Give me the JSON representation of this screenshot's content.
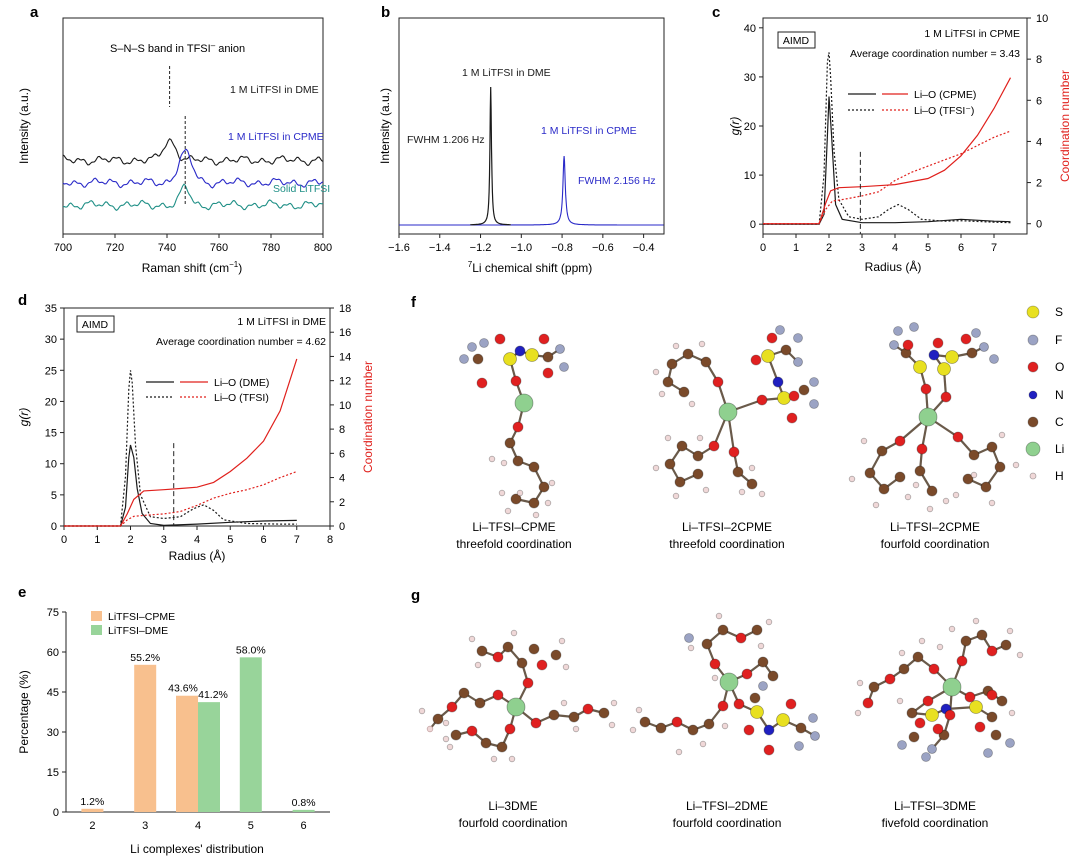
{
  "panel_letters": {
    "a": "a",
    "b": "b",
    "c": "c",
    "d": "d",
    "e": "e",
    "f": "f",
    "g": "g"
  },
  "colors": {
    "black": "#1a1a1a",
    "blue": "#2a2ac8",
    "teal": "#1f8f86",
    "red": "#e0201c",
    "orange": "#f8c08e",
    "green": "#98d49a",
    "S": "#e8e020",
    "F": "#9ba3c4",
    "O": "#e02020",
    "N": "#2020c0",
    "C": "#7a4a2a",
    "Li": "#8fd08f",
    "H": "#f0d8d8"
  },
  "chart_data": [
    {
      "id": "a",
      "type": "line",
      "title": "",
      "xlabel_pre": "Raman shift (cm",
      "xlabel_sup": "−1",
      "xlabel_post": ")",
      "ylabel": "Intensity (a.u.)",
      "xlim": [
        700,
        800
      ],
      "xticks": [
        700,
        720,
        740,
        760,
        780,
        800
      ],
      "annotation": "S–N–S band in TFSI",
      "annotation_sup": "–",
      "annotation_post": " anion",
      "series": [
        {
          "name": "1 M LiTFSI in DME",
          "color": "#1a1a1a",
          "peak": 741,
          "height": 1.4,
          "width": 3.5,
          "offset": 3.2,
          "label": "1 M LiTFSI in DME"
        },
        {
          "name": "1 M LiTFSI in CPME",
          "color": "#2a2ac8",
          "peak": 747,
          "height": 2.1,
          "width": 3.8,
          "offset": 1.6,
          "label": "1 M LiTFSI in CPME"
        },
        {
          "name": "Solid LiTFSI",
          "color": "#1f8f86",
          "peak": 747,
          "height": 1.3,
          "width": 2.5,
          "offset": 0,
          "label": "Solid LiTFSI"
        }
      ]
    },
    {
      "id": "b",
      "type": "line",
      "xlabel_pre": "",
      "xlabel_sup": "7",
      "xlabel_post": "Li chemical shift (ppm)",
      "ylabel": "Intensity (a.u.)",
      "xlim": [
        -1.6,
        -0.3
      ],
      "xticks": [
        -1.6,
        -1.4,
        -1.2,
        -1.0,
        -0.8,
        -0.6,
        -0.4
      ],
      "xtick_labels": [
        "−1.6",
        "−1.4",
        "−1.2",
        "−1.0",
        "−0.8",
        "−0.6",
        "−0.4"
      ],
      "series": [
        {
          "name": "1 M LiTFSI in DME",
          "color": "#1a1a1a",
          "peak": -1.15,
          "height": 1.0,
          "fwhm": "FWHM 1.206 Hz"
        },
        {
          "name": "1 M LiTFSI in CPME",
          "color": "#2a2ac8",
          "peak": -0.79,
          "height": 0.5,
          "fwhm": "FWHM 2.156 Hz"
        }
      ]
    },
    {
      "id": "c",
      "type": "line",
      "box_label": "AIMD",
      "title": "1 M LiTFSI in CPME",
      "subtitle": "Average coordination number = 3.43",
      "xlabel": "Radius (Å)",
      "ylabel": "g(r)",
      "y2label": "Coordination number",
      "xlim": [
        0,
        8
      ],
      "ylim": [
        -2,
        42
      ],
      "y2lim": [
        -0.5,
        10
      ],
      "xticks": [
        0,
        1,
        2,
        3,
        4,
        5,
        6,
        7
      ],
      "yticks": [
        0,
        10,
        20,
        30,
        40
      ],
      "y2ticks": [
        0,
        2,
        4,
        6,
        8,
        10
      ],
      "vline": 2.95,
      "legend": [
        "Li–O (CPME)",
        "Li–O (TFSI⁻)"
      ],
      "gr_solid": [
        [
          0,
          0
        ],
        [
          1.7,
          0
        ],
        [
          1.85,
          2
        ],
        [
          1.95,
          18
        ],
        [
          2.0,
          26
        ],
        [
          2.08,
          18
        ],
        [
          2.2,
          4
        ],
        [
          2.4,
          1
        ],
        [
          3,
          0.3
        ],
        [
          4,
          0.3
        ],
        [
          5,
          0.5
        ],
        [
          6,
          1.0
        ],
        [
          7,
          0.6
        ],
        [
          7.5,
          0.5
        ]
      ],
      "gr_dotted": [
        [
          0,
          0
        ],
        [
          1.7,
          0
        ],
        [
          1.85,
          10
        ],
        [
          1.95,
          33
        ],
        [
          2.0,
          35
        ],
        [
          2.05,
          30
        ],
        [
          2.15,
          15
        ],
        [
          2.3,
          5
        ],
        [
          2.6,
          1.5
        ],
        [
          3,
          1
        ],
        [
          3.5,
          1.5
        ],
        [
          3.8,
          3
        ],
        [
          4.1,
          4
        ],
        [
          4.4,
          3
        ],
        [
          4.8,
          1
        ],
        [
          5.5,
          0.6
        ],
        [
          6,
          0.7
        ],
        [
          7,
          0.4
        ],
        [
          7.5,
          0.3
        ]
      ],
      "cn_solid": [
        [
          0,
          0
        ],
        [
          1.7,
          0
        ],
        [
          1.9,
          1.0
        ],
        [
          2.05,
          1.6
        ],
        [
          2.3,
          1.75
        ],
        [
          3,
          1.8
        ],
        [
          4,
          1.9
        ],
        [
          5,
          2.2
        ],
        [
          5.5,
          2.6
        ],
        [
          6,
          3.3
        ],
        [
          6.5,
          4.3
        ],
        [
          7,
          5.6
        ],
        [
          7.5,
          7.1
        ]
      ],
      "cn_dotted": [
        [
          0,
          0
        ],
        [
          1.7,
          0
        ],
        [
          1.9,
          0.7
        ],
        [
          2.1,
          1.1
        ],
        [
          2.5,
          1.2
        ],
        [
          3,
          1.35
        ],
        [
          3.5,
          1.55
        ],
        [
          4,
          2.1
        ],
        [
          4.5,
          2.5
        ],
        [
          5,
          2.8
        ],
        [
          5.5,
          3.1
        ],
        [
          6,
          3.4
        ],
        [
          6.5,
          3.8
        ],
        [
          7,
          4.2
        ],
        [
          7.5,
          4.5
        ]
      ]
    },
    {
      "id": "d",
      "type": "line",
      "box_label": "AIMD",
      "title": "1 M LiTFSI in DME",
      "subtitle": "Average coordination number = 4.62",
      "xlabel": "Radius (Å)",
      "ylabel": "g(r)",
      "y2label": "Coordination number",
      "xlim": [
        0,
        8
      ],
      "ylim": [
        0,
        35
      ],
      "y2lim": [
        0,
        18
      ],
      "xticks": [
        0,
        1,
        2,
        3,
        4,
        5,
        6,
        7,
        8
      ],
      "yticks": [
        0,
        5,
        10,
        15,
        20,
        25,
        30,
        35
      ],
      "y2ticks": [
        0,
        2,
        4,
        6,
        8,
        10,
        12,
        14,
        16,
        18
      ],
      "vline": 3.3,
      "legend": [
        "Li–O (DME)",
        "Li–O (TFSI)"
      ],
      "gr_solid": [
        [
          0,
          0
        ],
        [
          1.7,
          0
        ],
        [
          1.85,
          3
        ],
        [
          1.95,
          11
        ],
        [
          2.0,
          13
        ],
        [
          2.1,
          11
        ],
        [
          2.2,
          6
        ],
        [
          2.35,
          2
        ],
        [
          2.6,
          0.4
        ],
        [
          3,
          0.1
        ],
        [
          4,
          0.3
        ],
        [
          5,
          0.6
        ],
        [
          6,
          0.8
        ],
        [
          7,
          0.9
        ]
      ],
      "gr_dotted": [
        [
          0,
          0
        ],
        [
          1.7,
          0
        ],
        [
          1.85,
          8
        ],
        [
          1.95,
          22
        ],
        [
          2.0,
          25
        ],
        [
          2.05,
          23
        ],
        [
          2.15,
          13
        ],
        [
          2.3,
          5
        ],
        [
          2.6,
          1.5
        ],
        [
          3,
          1.2
        ],
        [
          3.5,
          1.5
        ],
        [
          3.9,
          2.8
        ],
        [
          4.2,
          3.4
        ],
        [
          4.5,
          2.5
        ],
        [
          4.8,
          1
        ],
        [
          5.5,
          0.4
        ],
        [
          6.5,
          0.3
        ],
        [
          7,
          0.3
        ]
      ],
      "cn_solid": [
        [
          0,
          0
        ],
        [
          1.7,
          0
        ],
        [
          1.9,
          1
        ],
        [
          2.1,
          2.2
        ],
        [
          2.4,
          2.9
        ],
        [
          3,
          3.0
        ],
        [
          3.5,
          3.1
        ],
        [
          4,
          3.2
        ],
        [
          4.5,
          3.6
        ],
        [
          5,
          4.5
        ],
        [
          5.5,
          5.6
        ],
        [
          6,
          7.0
        ],
        [
          6.5,
          9.5
        ],
        [
          7,
          13.8
        ]
      ],
      "cn_dotted": [
        [
          0,
          0
        ],
        [
          1.7,
          0
        ],
        [
          1.9,
          0.5
        ],
        [
          2.1,
          0.8
        ],
        [
          2.5,
          0.9
        ],
        [
          3,
          1.0
        ],
        [
          3.5,
          1.2
        ],
        [
          4,
          1.7
        ],
        [
          4.5,
          2.3
        ],
        [
          5,
          2.7
        ],
        [
          5.5,
          3.0
        ],
        [
          6,
          3.4
        ],
        [
          6.5,
          4.0
        ],
        [
          7,
          4.5
        ]
      ]
    },
    {
      "id": "e",
      "type": "bar",
      "xlabel": "Li complexes' distribution",
      "ylabel": "Percentage (%)",
      "categories": [
        "2",
        "3",
        "4",
        "5",
        "6"
      ],
      "ylim": [
        0,
        75
      ],
      "yticks": [
        0,
        15,
        30,
        45,
        60,
        75
      ],
      "series": [
        {
          "name": "LiTFSI–CPME",
          "color": "#f8c08e",
          "values": [
            1.2,
            55.2,
            43.6,
            0,
            0
          ]
        },
        {
          "name": "LiTFSI–DME",
          "color": "#98d49a",
          "values": [
            0,
            0,
            41.2,
            58.0,
            0.8
          ]
        }
      ],
      "value_labels": [
        {
          "category": "2",
          "series": 0,
          "text": "1.2%"
        },
        {
          "category": "3",
          "series": 0,
          "text": "55.2%"
        },
        {
          "category": "4",
          "series": 0,
          "text": "43.6%"
        },
        {
          "category": "4",
          "series": 1,
          "text": "41.2%"
        },
        {
          "category": "5",
          "series": 1,
          "text": "58.0%"
        },
        {
          "category": "6",
          "series": 1,
          "text": "0.8%"
        }
      ]
    }
  ],
  "molecule_legend": [
    {
      "symbol": "S",
      "color": "#e8e020"
    },
    {
      "symbol": "F",
      "color": "#9ba3c4"
    },
    {
      "symbol": "O",
      "color": "#e02020"
    },
    {
      "symbol": "N",
      "color": "#2020c0"
    },
    {
      "symbol": "C",
      "color": "#7a4a2a"
    },
    {
      "symbol": "Li",
      "color": "#8fd08f"
    },
    {
      "symbol": "H",
      "color": "#f0d8d8"
    }
  ],
  "structures_f": [
    {
      "line1": "Li–TFSI–CPME",
      "line2": "threefold coordination"
    },
    {
      "line1": "Li–TFSI–2CPME",
      "line2": "threefold coordination"
    },
    {
      "line1": "Li–TFSI–2CPME",
      "line2": "fourfold coordination"
    }
  ],
  "structures_g": [
    {
      "line1": "Li–3DME",
      "line2": "fourfold coordination"
    },
    {
      "line1": "Li–TFSI–2DME",
      "line2": "fourfold coordination"
    },
    {
      "line1": "Li–TFSI–3DME",
      "line2": "fivefold coordination"
    }
  ]
}
